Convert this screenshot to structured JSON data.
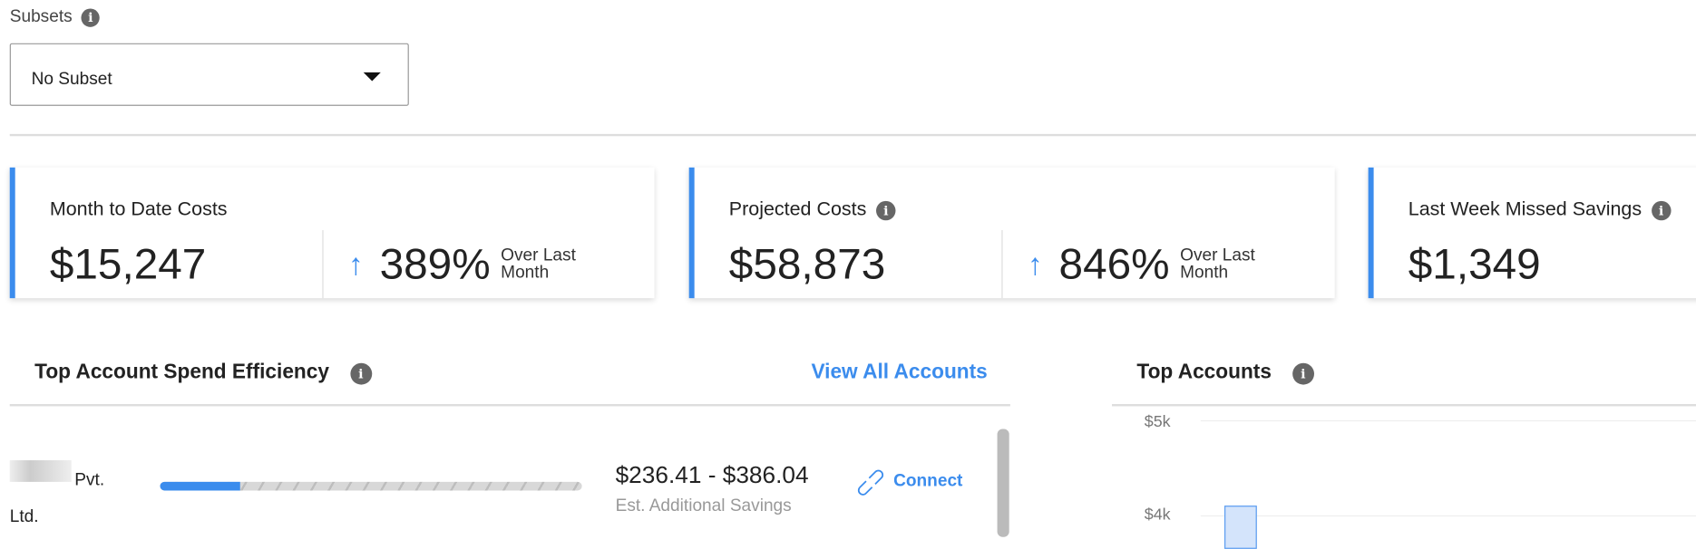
{
  "subsets": {
    "label": "Subsets",
    "selected": "No Subset"
  },
  "cards": [
    {
      "title": "Month to Date Costs",
      "value": "$15,247",
      "change": "389%",
      "change_label": "Over Last Month",
      "direction": "up"
    },
    {
      "title": "Projected Costs",
      "value": "$58,873",
      "change": "846%",
      "change_label": "Over Last Month",
      "direction": "up"
    },
    {
      "title": "Last Week Missed Savings",
      "value": "$1,349"
    }
  ],
  "efficiency": {
    "title": "Top Account Spend Efficiency",
    "view_all": "View All Accounts",
    "rows": [
      {
        "name": "Pvt. Ltd.",
        "progress_pct": 19,
        "savings": "$236.41 - $386.04",
        "savings_label": "Est. Additional Savings",
        "action": "Connect"
      }
    ]
  },
  "top_accounts": {
    "title": "Top Accounts"
  },
  "colors": {
    "accent": "#3b8ced"
  },
  "chart_data": {
    "type": "bar",
    "yticks": [
      "$5k",
      "$4k"
    ],
    "ylim_visible": [
      4,
      5
    ],
    "values": [
      4.1
    ],
    "yunit": "$k"
  }
}
